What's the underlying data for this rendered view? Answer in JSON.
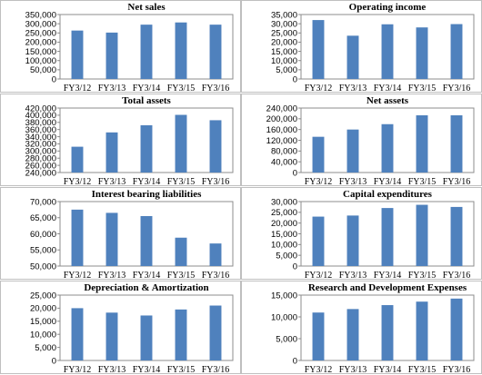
{
  "chart_data": [
    {
      "type": "bar",
      "title": "Net sales",
      "categories": [
        "FY3/12",
        "FY3/13",
        "FY3/14",
        "FY3/15",
        "FY3/16"
      ],
      "values": [
        263000,
        252000,
        295000,
        307000,
        295000
      ],
      "ylim": [
        0,
        350000
      ],
      "yticks": [
        "0",
        "50,000",
        "100,000",
        "150,000",
        "200,000",
        "250,000",
        "300,000",
        "350,000"
      ],
      "grid": false,
      "color": "#4f81bd"
    },
    {
      "type": "bar",
      "title": "Operating income",
      "categories": [
        "FY3/12",
        "FY3/13",
        "FY3/14",
        "FY3/15",
        "FY3/16"
      ],
      "values": [
        32000,
        23500,
        29700,
        28000,
        29800
      ],
      "ylim": [
        0,
        35000
      ],
      "yticks": [
        "0",
        "5,000",
        "10,000",
        "15,000",
        "20,000",
        "25,000",
        "30,000",
        "35,000"
      ],
      "grid": false,
      "color": "#4f81bd"
    },
    {
      "type": "bar",
      "title": "Total assets",
      "categories": [
        "FY3/12",
        "FY3/13",
        "FY3/14",
        "FY3/15",
        "FY3/16"
      ],
      "values": [
        312000,
        352000,
        372000,
        401000,
        386000
      ],
      "ylim": [
        240000,
        420000
      ],
      "yticks": [
        "240,000",
        "260,000",
        "280,000",
        "300,000",
        "320,000",
        "340,000",
        "360,000",
        "380,000",
        "400,000",
        "420,000"
      ],
      "grid": false,
      "color": "#4f81bd"
    },
    {
      "type": "bar",
      "title": "Net assets",
      "categories": [
        "FY3/12",
        "FY3/13",
        "FY3/14",
        "FY3/15",
        "FY3/16"
      ],
      "values": [
        133000,
        160000,
        180000,
        213000,
        213000
      ],
      "ylim": [
        0,
        240000
      ],
      "yticks": [
        "0",
        "40,000",
        "80,000",
        "120,000",
        "160,000",
        "200,000",
        "240,000"
      ],
      "grid": false,
      "color": "#4f81bd"
    },
    {
      "type": "bar",
      "title": "Interest bearing liabilities",
      "categories": [
        "FY3/12",
        "FY3/13",
        "FY3/14",
        "FY3/15",
        "FY3/16"
      ],
      "values": [
        67500,
        66500,
        65500,
        58800,
        57000
      ],
      "ylim": [
        50000,
        70000
      ],
      "yticks": [
        "50,000",
        "55,000",
        "60,000",
        "65,000",
        "70,000"
      ],
      "grid": false,
      "color": "#4f81bd"
    },
    {
      "type": "bar",
      "title": "Capital expenditures",
      "categories": [
        "FY3/12",
        "FY3/13",
        "FY3/14",
        "FY3/15",
        "FY3/16"
      ],
      "values": [
        23000,
        23500,
        27000,
        28500,
        27500
      ],
      "ylim": [
        0,
        30000
      ],
      "yticks": [
        "0",
        "5,000",
        "10,000",
        "15,000",
        "20,000",
        "25,000",
        "30,000"
      ],
      "grid": false,
      "color": "#4f81bd"
    },
    {
      "type": "bar",
      "title": "Depreciation & Amortization",
      "categories": [
        "FY3/12",
        "FY3/13",
        "FY3/14",
        "FY3/15",
        "FY3/16"
      ],
      "values": [
        20000,
        18300,
        17200,
        19500,
        21000
      ],
      "ylim": [
        0,
        25000
      ],
      "yticks": [
        "0",
        "5,000",
        "10,000",
        "15,000",
        "20,000",
        "25,000"
      ],
      "grid": false,
      "color": "#4f81bd"
    },
    {
      "type": "bar",
      "title": "Research and Development Expenses",
      "categories": [
        "FY3/12",
        "FY3/13",
        "FY3/14",
        "FY3/15",
        "FY3/16"
      ],
      "values": [
        11000,
        11800,
        12700,
        13500,
        14200
      ],
      "ylim": [
        0,
        15000
      ],
      "yticks": [
        "0",
        "5,000",
        "10,000",
        "15,000"
      ],
      "grid": false,
      "color": "#4f81bd"
    }
  ]
}
